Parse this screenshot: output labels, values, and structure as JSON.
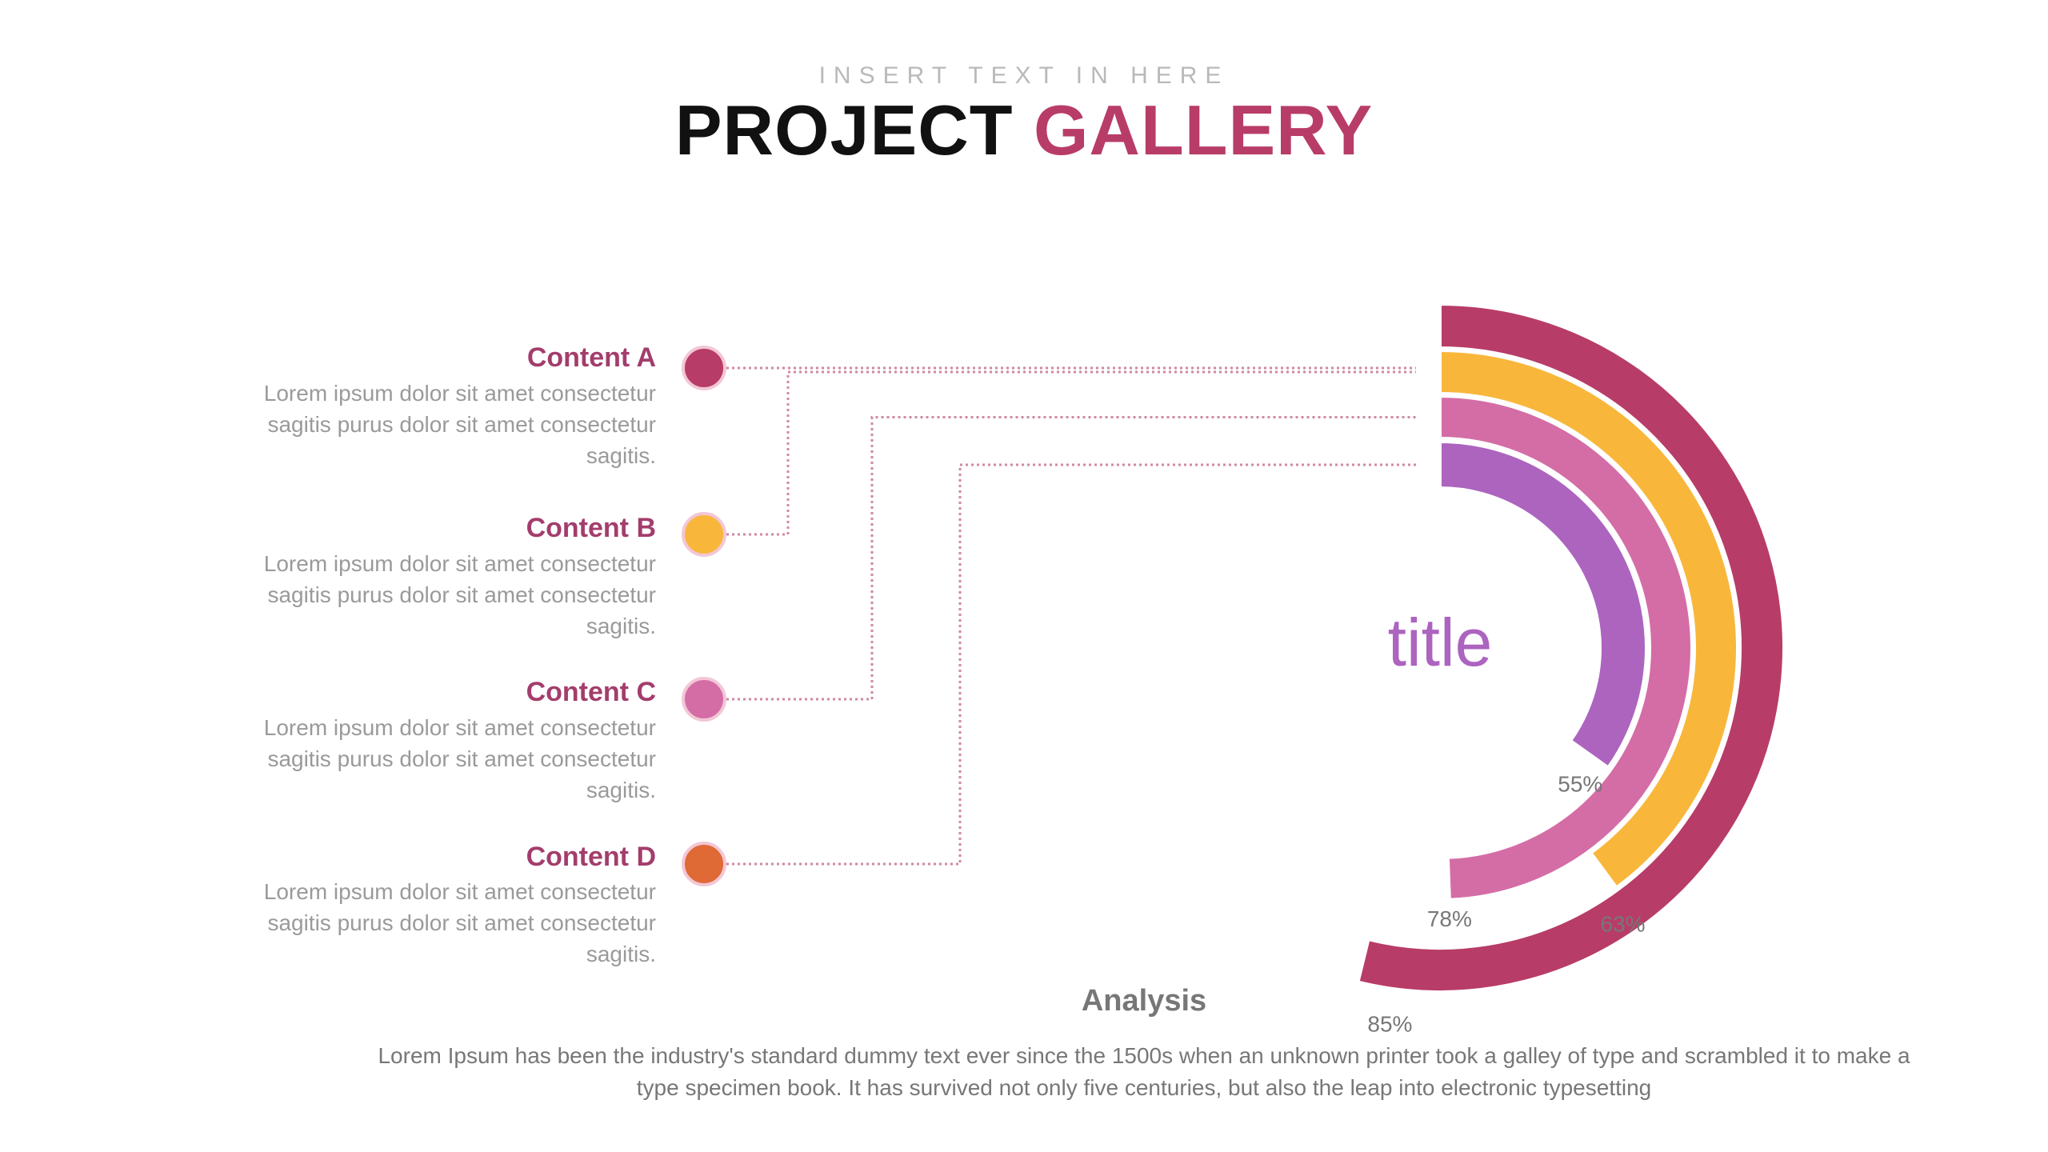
{
  "header": {
    "subtitle": "INSERT TEXT IN HERE",
    "title_main": "PROJECT ",
    "title_accent": "GALLERY"
  },
  "items": [
    {
      "title": "Content A",
      "text": "Lorem ipsum dolor sit amet consectetur sagitis purus dolor sit amet consectetur sagitis.",
      "color": "#b83c68"
    },
    {
      "title": "Content B",
      "text": "Lorem ipsum dolor sit amet consectetur sagitis purus dolor sit amet consectetur sagitis.",
      "color": "#f8b73b"
    },
    {
      "title": "Content C",
      "text": "Lorem ipsum dolor sit amet consectetur sagitis purus dolor sit amet consectetur sagitis.",
      "color": "#d46da6"
    },
    {
      "title": "Content D",
      "text": "Lorem ipsum dolor sit amet consectetur sagitis purus dolor sit amet consectetur sagitis.",
      "color": "#e06a36"
    }
  ],
  "chart_data": {
    "type": "radial-bar",
    "center_label": "title",
    "series": [
      {
        "name": "Content A",
        "value": 85,
        "label": "85%",
        "color": "#b83c68"
      },
      {
        "name": "Content B",
        "value": 63,
        "label": "63%",
        "color": "#f8b73b"
      },
      {
        "name": "Content C",
        "value": 78,
        "label": "78%",
        "color": "#d46da6"
      },
      {
        "name": "Content D",
        "value": 55,
        "label": "55%",
        "color": "#ac64bf"
      }
    ],
    "label_color": "#777777",
    "connector_color": "#cf8aa4"
  },
  "analysis": {
    "title": "Analysis",
    "body": "Lorem Ipsum has been the industry's standard dummy text ever since the 1500s when an unknown printer took a galley of type and scrambled it to make a type specimen book. It has survived not only five centuries, but also the leap into electronic typesetting"
  }
}
